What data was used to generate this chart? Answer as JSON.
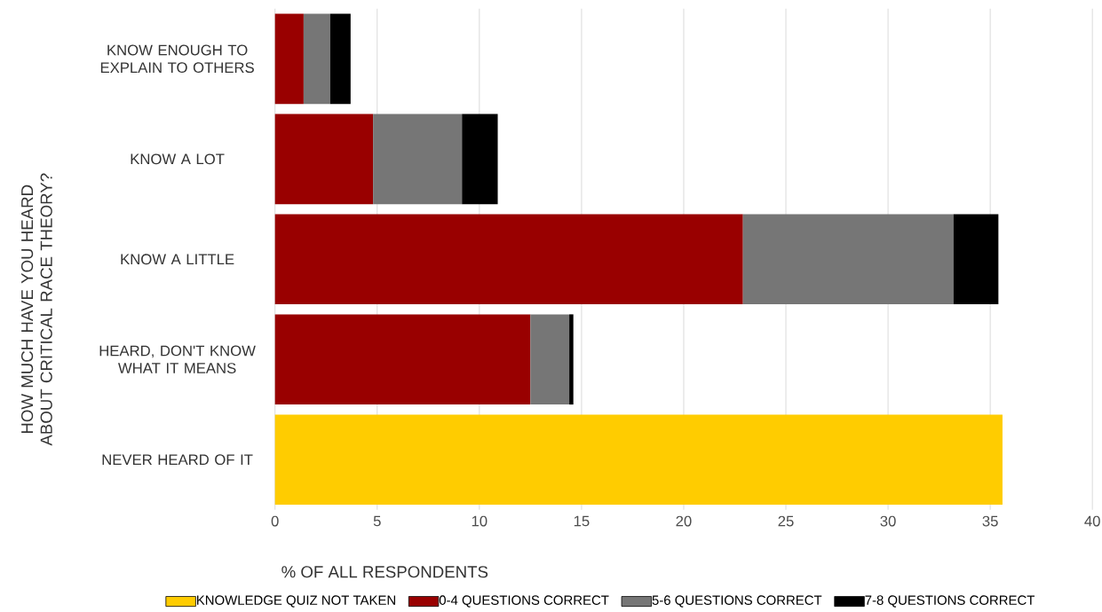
{
  "chart_data": {
    "type": "bar",
    "orientation": "horizontal",
    "stacked": true,
    "xlabel": "% OF ALL RESPONDENTS",
    "ylabel": "HOW MUCH HAVE YOU HEARD ABOUT CRITICAL RACE THEORY?",
    "categories": [
      "KNOW ENOUGH TO EXPLAIN TO OTHERS",
      "KNOW A LOT",
      "KNOW A LITTLE",
      "HEARD, DON'T KNOW WHAT IT MEANS",
      "NEVER HEARD OF IT"
    ],
    "series": [
      {
        "name": "KNOWLEDGE QUIZ NOT TAKEN",
        "color": "#ffcc00",
        "values": [
          null,
          null,
          null,
          null,
          35.6
        ]
      },
      {
        "name": "0-4 QUESTIONS CORRECT",
        "color": "#990000",
        "values": [
          1.4,
          4.8,
          22.9,
          12.5,
          null
        ]
      },
      {
        "name": "5-6 QUESTIONS CORRECT",
        "color": "#767676",
        "values": [
          1.3,
          4.35,
          10.3,
          1.9,
          null
        ]
      },
      {
        "name": "7-8 QUESTIONS CORRECT",
        "color": "#000000",
        "values": [
          1.0,
          1.75,
          2.2,
          0.2,
          null
        ]
      }
    ],
    "xlim": [
      0,
      40
    ],
    "xticks": [
      0,
      5,
      10,
      15,
      20,
      25,
      30,
      35,
      40
    ],
    "grid": "x",
    "legend": "bottom"
  }
}
